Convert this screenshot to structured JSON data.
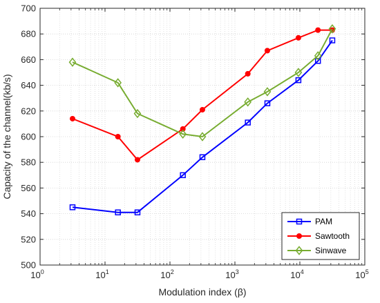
{
  "chart_data": {
    "type": "line",
    "title": "",
    "xlabel": "Modulation index (β)",
    "ylabel": "Capacity of the channel(kb/s)",
    "x_scale": "log",
    "xlim": [
      1,
      100000
    ],
    "ylim": [
      500,
      700
    ],
    "x_ticks": [
      {
        "value": 1,
        "base": "10",
        "exp": "0"
      },
      {
        "value": 10,
        "base": "10",
        "exp": "1"
      },
      {
        "value": 100,
        "base": "10",
        "exp": "2"
      },
      {
        "value": 1000,
        "base": "10",
        "exp": "3"
      },
      {
        "value": 10000,
        "base": "10",
        "exp": "4"
      },
      {
        "value": 100000,
        "base": "10",
        "exp": "5"
      }
    ],
    "y_ticks": [
      500,
      520,
      540,
      560,
      580,
      600,
      620,
      640,
      660,
      680,
      700
    ],
    "y_tick_labels": [
      "500",
      "520",
      "540",
      "560",
      "580",
      "600",
      "620",
      "640",
      "660",
      "680",
      "700"
    ],
    "grid": true,
    "minor_grid_x": true,
    "legend_position": "bottom-right",
    "series": [
      {
        "name": "PAM",
        "color": "#0000ff",
        "marker": "square",
        "x": [
          3.16,
          15.8,
          31.6,
          158,
          316,
          1580,
          3160,
          9500,
          19000,
          31600
        ],
        "y": [
          545,
          541,
          541,
          570,
          584,
          611,
          626,
          644,
          659,
          675
        ]
      },
      {
        "name": "Sawtooth",
        "color": "#ff0000",
        "marker": "circle",
        "x": [
          3.16,
          15.8,
          31.6,
          158,
          316,
          1580,
          3160,
          9500,
          19000,
          31600
        ],
        "y": [
          614,
          600,
          582,
          606,
          621,
          649,
          667,
          677,
          683,
          683
        ]
      },
      {
        "name": "Sinwave",
        "color": "#77ac30",
        "marker": "diamond",
        "x": [
          3.16,
          15.8,
          31.6,
          158,
          316,
          1580,
          3160,
          9500,
          19000,
          31600
        ],
        "y": [
          658,
          642,
          618,
          602,
          600,
          627,
          635,
          650,
          663,
          684
        ]
      }
    ]
  }
}
